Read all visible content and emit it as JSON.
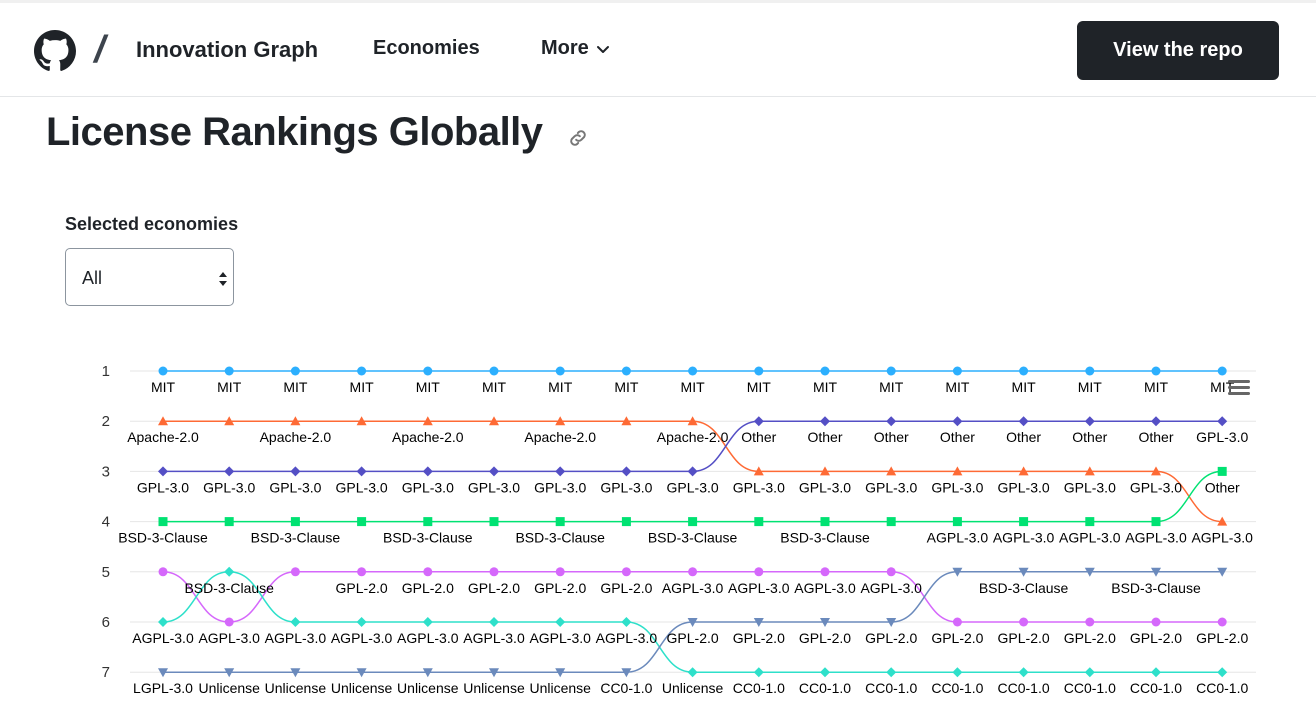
{
  "header": {
    "brand_title": "Innovation Graph",
    "nav_economies": "Economies",
    "nav_more": "More",
    "repo_button": "View the repo",
    "logo_icon": "github-mark-icon"
  },
  "page": {
    "title": "License Rankings Globally",
    "link_icon": "link-icon"
  },
  "filter": {
    "label": "Selected economies",
    "selected": "All"
  },
  "colors": {
    "MIT": "#2caffe",
    "Apache-2.0": "#fe6a35",
    "Other": "#544fc5",
    "GPL-3.0": "#00e272",
    "BSD-3-Clause": "#d568fb",
    "AGPL-3.0": "#6b8abc",
    "GPL-2.0": "#2ee0ca"
  },
  "chart_data": {
    "type": "line",
    "chart_subtype": "bump",
    "y_ticks": [
      1,
      2,
      3,
      4,
      5,
      6,
      7
    ],
    "y_reversed": true,
    "x_count": 17,
    "series": [
      {
        "name": "MIT",
        "marker": "circle",
        "ranks": [
          1,
          1,
          1,
          1,
          1,
          1,
          1,
          1,
          1,
          1,
          1,
          1,
          1,
          1,
          1,
          1,
          1
        ]
      },
      {
        "name": "Apache-2.0",
        "marker": "triangle",
        "ranks": [
          2,
          2,
          2,
          2,
          2,
          2,
          2,
          2,
          2,
          3,
          3,
          3,
          3,
          3,
          3,
          3,
          4
        ]
      },
      {
        "name": "Other",
        "marker": "diamond",
        "ranks": [
          3,
          3,
          3,
          3,
          3,
          3,
          3,
          3,
          3,
          2,
          2,
          2,
          2,
          2,
          2,
          2,
          2
        ]
      },
      {
        "name": "GPL-3.0",
        "marker": "square",
        "ranks": [
          4,
          4,
          4,
          4,
          4,
          4,
          4,
          4,
          4,
          4,
          4,
          4,
          4,
          4,
          4,
          4,
          3
        ]
      },
      {
        "name": "BSD-3-Clause",
        "marker": "circle",
        "ranks": [
          5,
          6,
          5,
          5,
          5,
          5,
          5,
          5,
          5,
          5,
          5,
          5,
          6,
          6,
          6,
          6,
          6
        ]
      },
      {
        "name": "GPL-2.0",
        "marker": "diamond",
        "ranks": [
          6,
          5,
          6,
          6,
          6,
          6,
          6,
          6,
          7,
          7,
          7,
          7,
          7,
          7,
          7,
          7,
          7
        ]
      },
      {
        "name": "AGPL-3.0",
        "marker": "triangle-down",
        "ranks": [
          7,
          7,
          7,
          7,
          7,
          7,
          7,
          7,
          6,
          6,
          6,
          6,
          5,
          5,
          5,
          5,
          5
        ]
      }
    ],
    "point_labels": [
      {
        "row": 1,
        "texts": [
          "MIT",
          "MIT",
          "MIT",
          "MIT",
          "MIT",
          "MIT",
          "MIT",
          "MIT",
          "MIT",
          "MIT",
          "MIT",
          "MIT",
          "MIT",
          "MIT",
          "MIT",
          "MIT",
          "MIT"
        ]
      },
      {
        "row": 2,
        "texts": [
          "Apache-2.0",
          "",
          "Apache-2.0",
          "",
          "Apache-2.0",
          "",
          "Apache-2.0",
          "",
          "Apache-2.0",
          "Other",
          "Other",
          "Other",
          "Other",
          "Other",
          "Other",
          "Other",
          "GPL-3.0"
        ]
      },
      {
        "row": 3,
        "texts": [
          "GPL-3.0",
          "GPL-3.0",
          "GPL-3.0",
          "GPL-3.0",
          "GPL-3.0",
          "GPL-3.0",
          "GPL-3.0",
          "GPL-3.0",
          "GPL-3.0",
          "GPL-3.0",
          "GPL-3.0",
          "GPL-3.0",
          "GPL-3.0",
          "GPL-3.0",
          "GPL-3.0",
          "GPL-3.0",
          "Other"
        ]
      },
      {
        "row": 4,
        "texts": [
          "BSD-3-Clause",
          "",
          "BSD-3-Clause",
          "",
          "BSD-3-Clause",
          "",
          "BSD-3-Clause",
          "",
          "BSD-3-Clause",
          "",
          "BSD-3-Clause",
          "",
          "AGPL-3.0",
          "AGPL-3.0",
          "AGPL-3.0",
          "AGPL-3.0",
          "AGPL-3.0"
        ]
      },
      {
        "row": 5,
        "texts": [
          "",
          "BSD-3-Clause",
          "",
          "GPL-2.0",
          "GPL-2.0",
          "GPL-2.0",
          "GPL-2.0",
          "GPL-2.0",
          "AGPL-3.0",
          "AGPL-3.0",
          "AGPL-3.0",
          "AGPL-3.0",
          "",
          "BSD-3-Clause",
          "",
          "BSD-3-Clause",
          ""
        ]
      },
      {
        "row": 6,
        "texts": [
          "AGPL-3.0",
          "AGPL-3.0",
          "AGPL-3.0",
          "AGPL-3.0",
          "AGPL-3.0",
          "AGPL-3.0",
          "AGPL-3.0",
          "AGPL-3.0",
          "GPL-2.0",
          "GPL-2.0",
          "GPL-2.0",
          "GPL-2.0",
          "GPL-2.0",
          "GPL-2.0",
          "GPL-2.0",
          "GPL-2.0",
          "GPL-2.0"
        ]
      },
      {
        "row": 7,
        "texts": [
          "LGPL-3.0",
          "Unlicense",
          "Unlicense",
          "Unlicense",
          "Unlicense",
          "Unlicense",
          "Unlicense",
          "CC0-1.0",
          "Unlicense",
          "CC0-1.0",
          "CC0-1.0",
          "CC0-1.0",
          "CC0-1.0",
          "CC0-1.0",
          "CC0-1.0",
          "CC0-1.0",
          "CC0-1.0"
        ]
      }
    ],
    "menu_icon": "hamburger-icon"
  }
}
